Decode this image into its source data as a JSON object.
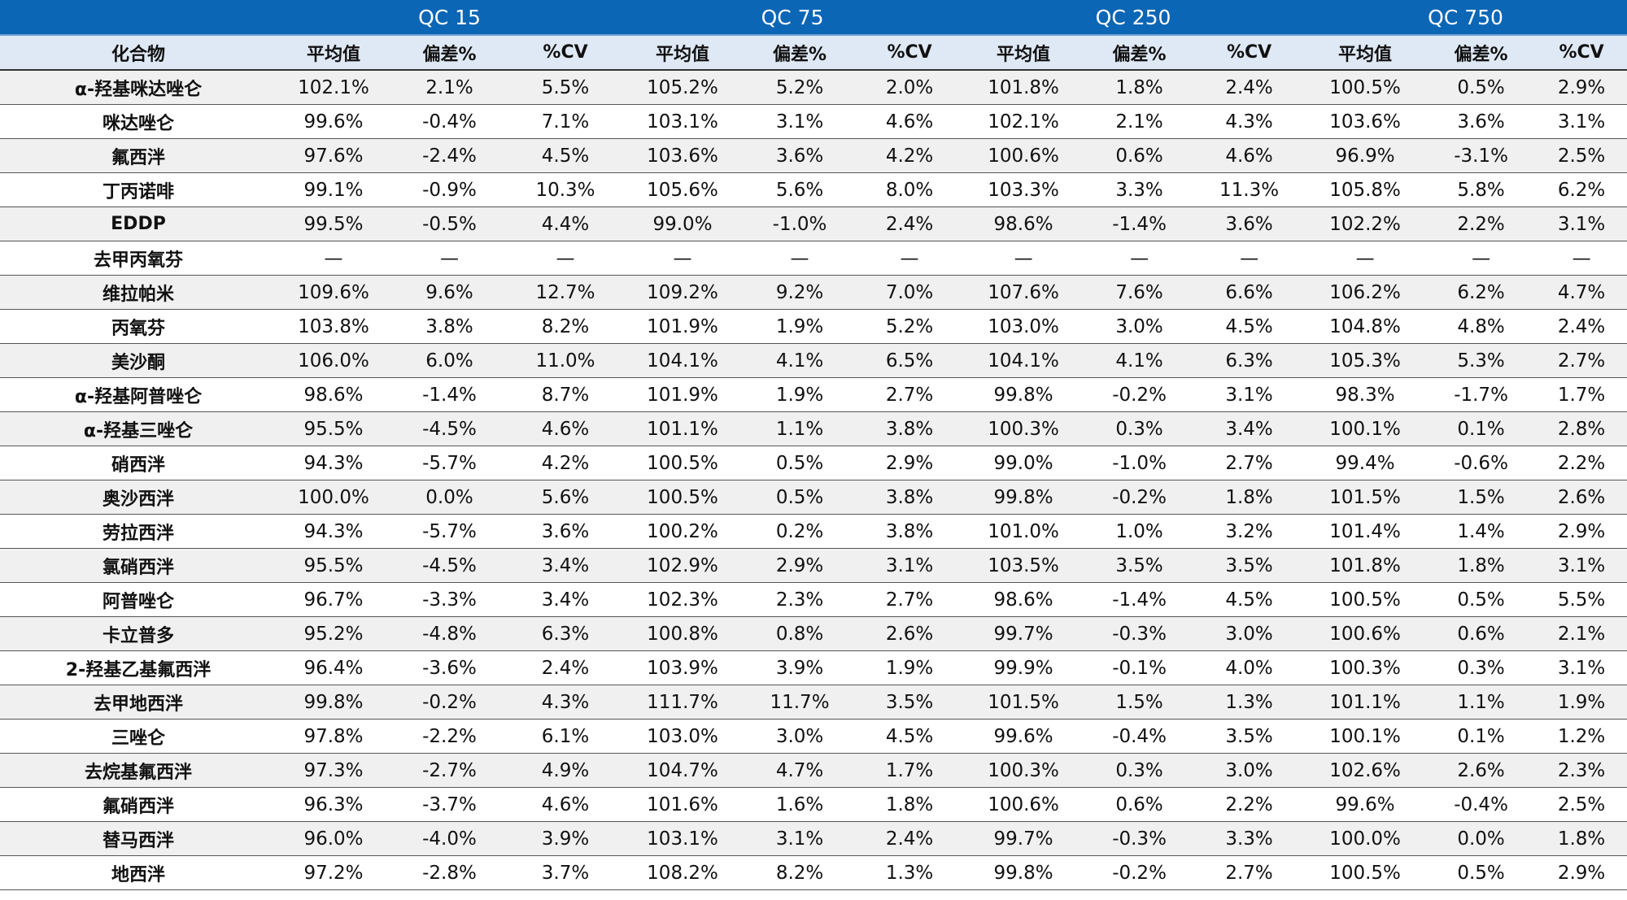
{
  "groups": [
    "",
    "QC 15",
    "QC 75",
    "QC 250",
    "QC 750"
  ],
  "subheaders": [
    "化合物",
    "平均值",
    "偏差%",
    "%CV",
    "平均值",
    "偏差%",
    "%CV",
    "平均值",
    "偏差%",
    "%CV",
    "平均值",
    "偏差%",
    "%CV"
  ],
  "rows": [
    [
      "α-羟基咪达唑仑",
      "102.1%",
      "2.1%",
      "5.5%",
      "105.2%",
      "5.2%",
      "2.0%",
      "101.8%",
      "1.8%",
      "2.4%",
      "100.5%",
      "0.5%",
      "2.9%"
    ],
    [
      "咪达唑仑",
      "99.6%",
      "-0.4%",
      "7.1%",
      "103.1%",
      "3.1%",
      "4.6%",
      "102.1%",
      "2.1%",
      "4.3%",
      "103.6%",
      "3.6%",
      "3.1%"
    ],
    [
      "氟西泮",
      "97.6%",
      "-2.4%",
      "4.5%",
      "103.6%",
      "3.6%",
      "4.2%",
      "100.6%",
      "0.6%",
      "4.6%",
      "96.9%",
      "-3.1%",
      "2.5%"
    ],
    [
      "丁丙诺啡",
      "99.1%",
      "-0.9%",
      "10.3%",
      "105.6%",
      "5.6%",
      "8.0%",
      "103.3%",
      "3.3%",
      "11.3%",
      "105.8%",
      "5.8%",
      "6.2%"
    ],
    [
      "EDDP",
      "99.5%",
      "-0.5%",
      "4.4%",
      "99.0%",
      "-1.0%",
      "2.4%",
      "98.6%",
      "-1.4%",
      "3.6%",
      "102.2%",
      "2.2%",
      "3.1%"
    ],
    [
      "去甲丙氧芬",
      "—",
      "—",
      "—",
      "—",
      "—",
      "—",
      "—",
      "—",
      "—",
      "—",
      "—",
      "—"
    ],
    [
      "维拉帕米",
      "109.6%",
      "9.6%",
      "12.7%",
      "109.2%",
      "9.2%",
      "7.0%",
      "107.6%",
      "7.6%",
      "6.6%",
      "106.2%",
      "6.2%",
      "4.7%"
    ],
    [
      "丙氧芬",
      "103.8%",
      "3.8%",
      "8.2%",
      "101.9%",
      "1.9%",
      "5.2%",
      "103.0%",
      "3.0%",
      "4.5%",
      "104.8%",
      "4.8%",
      "2.4%"
    ],
    [
      "美沙酮",
      "106.0%",
      "6.0%",
      "11.0%",
      "104.1%",
      "4.1%",
      "6.5%",
      "104.1%",
      "4.1%",
      "6.3%",
      "105.3%",
      "5.3%",
      "2.7%"
    ],
    [
      "α-羟基阿普唑仑",
      "98.6%",
      "-1.4%",
      "8.7%",
      "101.9%",
      "1.9%",
      "2.7%",
      "99.8%",
      "-0.2%",
      "3.1%",
      "98.3%",
      "-1.7%",
      "1.7%"
    ],
    [
      "α-羟基三唑仑",
      "95.5%",
      "-4.5%",
      "4.6%",
      "101.1%",
      "1.1%",
      "3.8%",
      "100.3%",
      "0.3%",
      "3.4%",
      "100.1%",
      "0.1%",
      "2.8%"
    ],
    [
      "硝西泮",
      "94.3%",
      "-5.7%",
      "4.2%",
      "100.5%",
      "0.5%",
      "2.9%",
      "99.0%",
      "-1.0%",
      "2.7%",
      "99.4%",
      "-0.6%",
      "2.2%"
    ],
    [
      "奥沙西泮",
      "100.0%",
      "0.0%",
      "5.6%",
      "100.5%",
      "0.5%",
      "3.8%",
      "99.8%",
      "-0.2%",
      "1.8%",
      "101.5%",
      "1.5%",
      "2.6%"
    ],
    [
      "劳拉西泮",
      "94.3%",
      "-5.7%",
      "3.6%",
      "100.2%",
      "0.2%",
      "3.8%",
      "101.0%",
      "1.0%",
      "3.2%",
      "101.4%",
      "1.4%",
      "2.9%"
    ],
    [
      "氯硝西泮",
      "95.5%",
      "-4.5%",
      "3.4%",
      "102.9%",
      "2.9%",
      "3.1%",
      "103.5%",
      "3.5%",
      "3.5%",
      "101.8%",
      "1.8%",
      "3.1%"
    ],
    [
      "阿普唑仑",
      "96.7%",
      "-3.3%",
      "3.4%",
      "102.3%",
      "2.3%",
      "2.7%",
      "98.6%",
      "-1.4%",
      "4.5%",
      "100.5%",
      "0.5%",
      "5.5%"
    ],
    [
      "卡立普多",
      "95.2%",
      "-4.8%",
      "6.3%",
      "100.8%",
      "0.8%",
      "2.6%",
      "99.7%",
      "-0.3%",
      "3.0%",
      "100.6%",
      "0.6%",
      "2.1%"
    ],
    [
      "2-羟基乙基氟西泮",
      "96.4%",
      "-3.6%",
      "2.4%",
      "103.9%",
      "3.9%",
      "1.9%",
      "99.9%",
      "-0.1%",
      "4.0%",
      "100.3%",
      "0.3%",
      "3.1%"
    ],
    [
      "去甲地西泮",
      "99.8%",
      "-0.2%",
      "4.3%",
      "111.7%",
      "11.7%",
      "3.5%",
      "101.5%",
      "1.5%",
      "1.3%",
      "101.1%",
      "1.1%",
      "1.9%"
    ],
    [
      "三唑仑",
      "97.8%",
      "-2.2%",
      "6.1%",
      "103.0%",
      "3.0%",
      "4.5%",
      "99.6%",
      "-0.4%",
      "3.5%",
      "100.1%",
      "0.1%",
      "1.2%"
    ],
    [
      "去烷基氟西泮",
      "97.3%",
      "-2.7%",
      "4.9%",
      "104.7%",
      "4.7%",
      "1.7%",
      "100.3%",
      "0.3%",
      "3.0%",
      "102.6%",
      "2.6%",
      "2.3%"
    ],
    [
      "氟硝西泮",
      "96.3%",
      "-3.7%",
      "4.6%",
      "101.6%",
      "1.6%",
      "1.8%",
      "100.6%",
      "0.6%",
      "2.2%",
      "99.6%",
      "-0.4%",
      "2.5%"
    ],
    [
      "替马西泮",
      "96.0%",
      "-4.0%",
      "3.9%",
      "103.1%",
      "3.1%",
      "2.4%",
      "99.7%",
      "-0.3%",
      "3.3%",
      "100.0%",
      "0.0%",
      "1.8%"
    ],
    [
      "地西泮",
      "97.2%",
      "-2.8%",
      "3.7%",
      "108.2%",
      "8.2%",
      "1.3%",
      "99.8%",
      "-0.2%",
      "2.7%",
      "100.5%",
      "0.5%",
      "2.9%"
    ]
  ],
  "colors": {
    "header_bg": "#0b66b5",
    "subheader_bg": "#dfe9f5",
    "row_alt_bg": "#f0f0f0",
    "row_bg": "#ffffff"
  }
}
